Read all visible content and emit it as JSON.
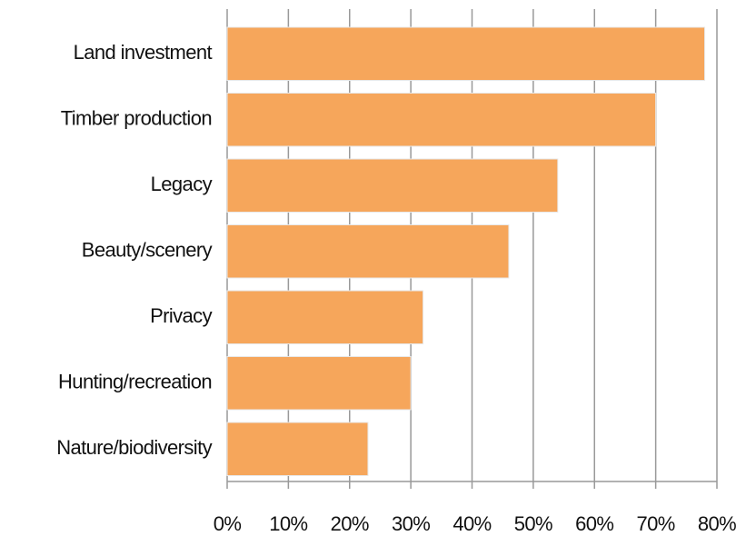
{
  "chart_data": {
    "type": "bar",
    "orientation": "horizontal",
    "categories": [
      "Land investment",
      "Timber production",
      "Legacy",
      "Beauty/scenery",
      "Privacy",
      "Hunting/recreation",
      "Nature/biodiversity"
    ],
    "values": [
      78,
      70,
      54,
      46,
      32,
      30,
      23
    ],
    "color": "#f6a65b",
    "xlim": [
      0,
      80
    ],
    "xticks": [
      {
        "value": 0,
        "label": "0%"
      },
      {
        "value": 10,
        "label": "10%"
      },
      {
        "value": 20,
        "label": "20%"
      },
      {
        "value": 30,
        "label": "30%"
      },
      {
        "value": 40,
        "label": "40%"
      },
      {
        "value": 50,
        "label": "50%"
      },
      {
        "value": 60,
        "label": "60%"
      },
      {
        "value": 70,
        "label": "70%"
      },
      {
        "value": 80,
        "label": "80%"
      }
    ],
    "grid": true
  }
}
